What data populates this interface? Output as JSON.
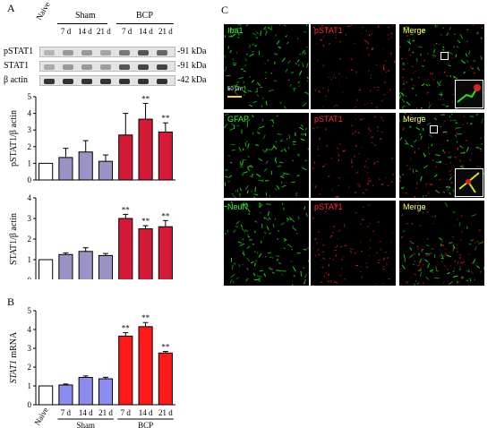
{
  "panels": {
    "a": "A",
    "b": "B",
    "c": "C"
  },
  "lanes": {
    "naive": "Naive",
    "times": [
      "7 d",
      "14 d",
      "21 d",
      "7 d",
      "14 d",
      "21 d"
    ],
    "sham": "Sham",
    "bcp": "BCP"
  },
  "blots": {
    "rows": [
      {
        "name": "pSTAT1",
        "kda": "-91 kDa"
      },
      {
        "name": "STAT1",
        "kda": "-91 kDa"
      },
      {
        "name": "β actin",
        "kda": "-42 kDa"
      }
    ]
  },
  "colors": {
    "naive": "#ffffff",
    "sham_a": "#9b93c6",
    "bcp_a": "#d51a38",
    "sham_b": "#8c8cf0",
    "bcp_b": "#ff1a1a"
  },
  "chart_data": [
    {
      "type": "bar",
      "ylabel": "pSTAT1/β actin",
      "ylim": [
        0,
        5
      ],
      "yticks": [
        "0",
        "1",
        "2",
        "3",
        "4",
        "5"
      ],
      "values": [
        1.0,
        1.35,
        1.68,
        1.12,
        2.7,
        3.65,
        2.88
      ],
      "errors": [
        0.0,
        0.55,
        0.68,
        0.38,
        1.3,
        0.95,
        0.55
      ],
      "sig": [
        "",
        "",
        "",
        "",
        "",
        "**",
        "**"
      ]
    },
    {
      "type": "bar",
      "ylabel": "STAT1/β actin",
      "ylim": [
        0,
        4
      ],
      "yticks": [
        "0",
        "1",
        "2",
        "3",
        "4"
      ],
      "values": [
        1.0,
        1.25,
        1.4,
        1.2,
        3.0,
        2.5,
        2.6
      ],
      "errors": [
        0.0,
        0.08,
        0.18,
        0.1,
        0.2,
        0.15,
        0.3
      ],
      "sig": [
        "",
        "",
        "",
        "",
        "**",
        "**",
        "**"
      ]
    },
    {
      "type": "bar",
      "ylabel": "STAT1 mRNA",
      "ylim": [
        0,
        5
      ],
      "yticks": [
        "0",
        "1",
        "2",
        "3",
        "4",
        "5"
      ],
      "categories": [
        "Naive",
        "7 d",
        "14 d",
        "21 d",
        "7 d",
        "14 d",
        "21 d"
      ],
      "groups": [
        "Sham",
        "BCP"
      ],
      "values": [
        1.0,
        1.05,
        1.45,
        1.38,
        3.65,
        4.15,
        2.75
      ],
      "errors": [
        0.0,
        0.05,
        0.08,
        0.08,
        0.18,
        0.22,
        0.08
      ],
      "sig": [
        "",
        "",
        "",
        "",
        "**",
        "**",
        "**"
      ]
    }
  ],
  "micrographs": {
    "rows": [
      {
        "cols": [
          {
            "label": "Iba1",
            "color": "#2cff2c"
          },
          {
            "label": "pSTAT1",
            "color": "#ff3030"
          },
          {
            "label": "Merge",
            "color": "#ffff40"
          }
        ]
      },
      {
        "cols": [
          {
            "label": "GFAP",
            "color": "#2cff2c"
          },
          {
            "label": "pSTAT1",
            "color": "#ff3030"
          },
          {
            "label": "Merge",
            "color": "#ffff40"
          }
        ]
      },
      {
        "cols": [
          {
            "label": "NeuN",
            "color": "#2cff2c"
          },
          {
            "label": "pSTAT1",
            "color": "#ff3030"
          },
          {
            "label": "Merge",
            "color": "#ffff40"
          }
        ]
      }
    ],
    "scalebar": "50 μm"
  }
}
